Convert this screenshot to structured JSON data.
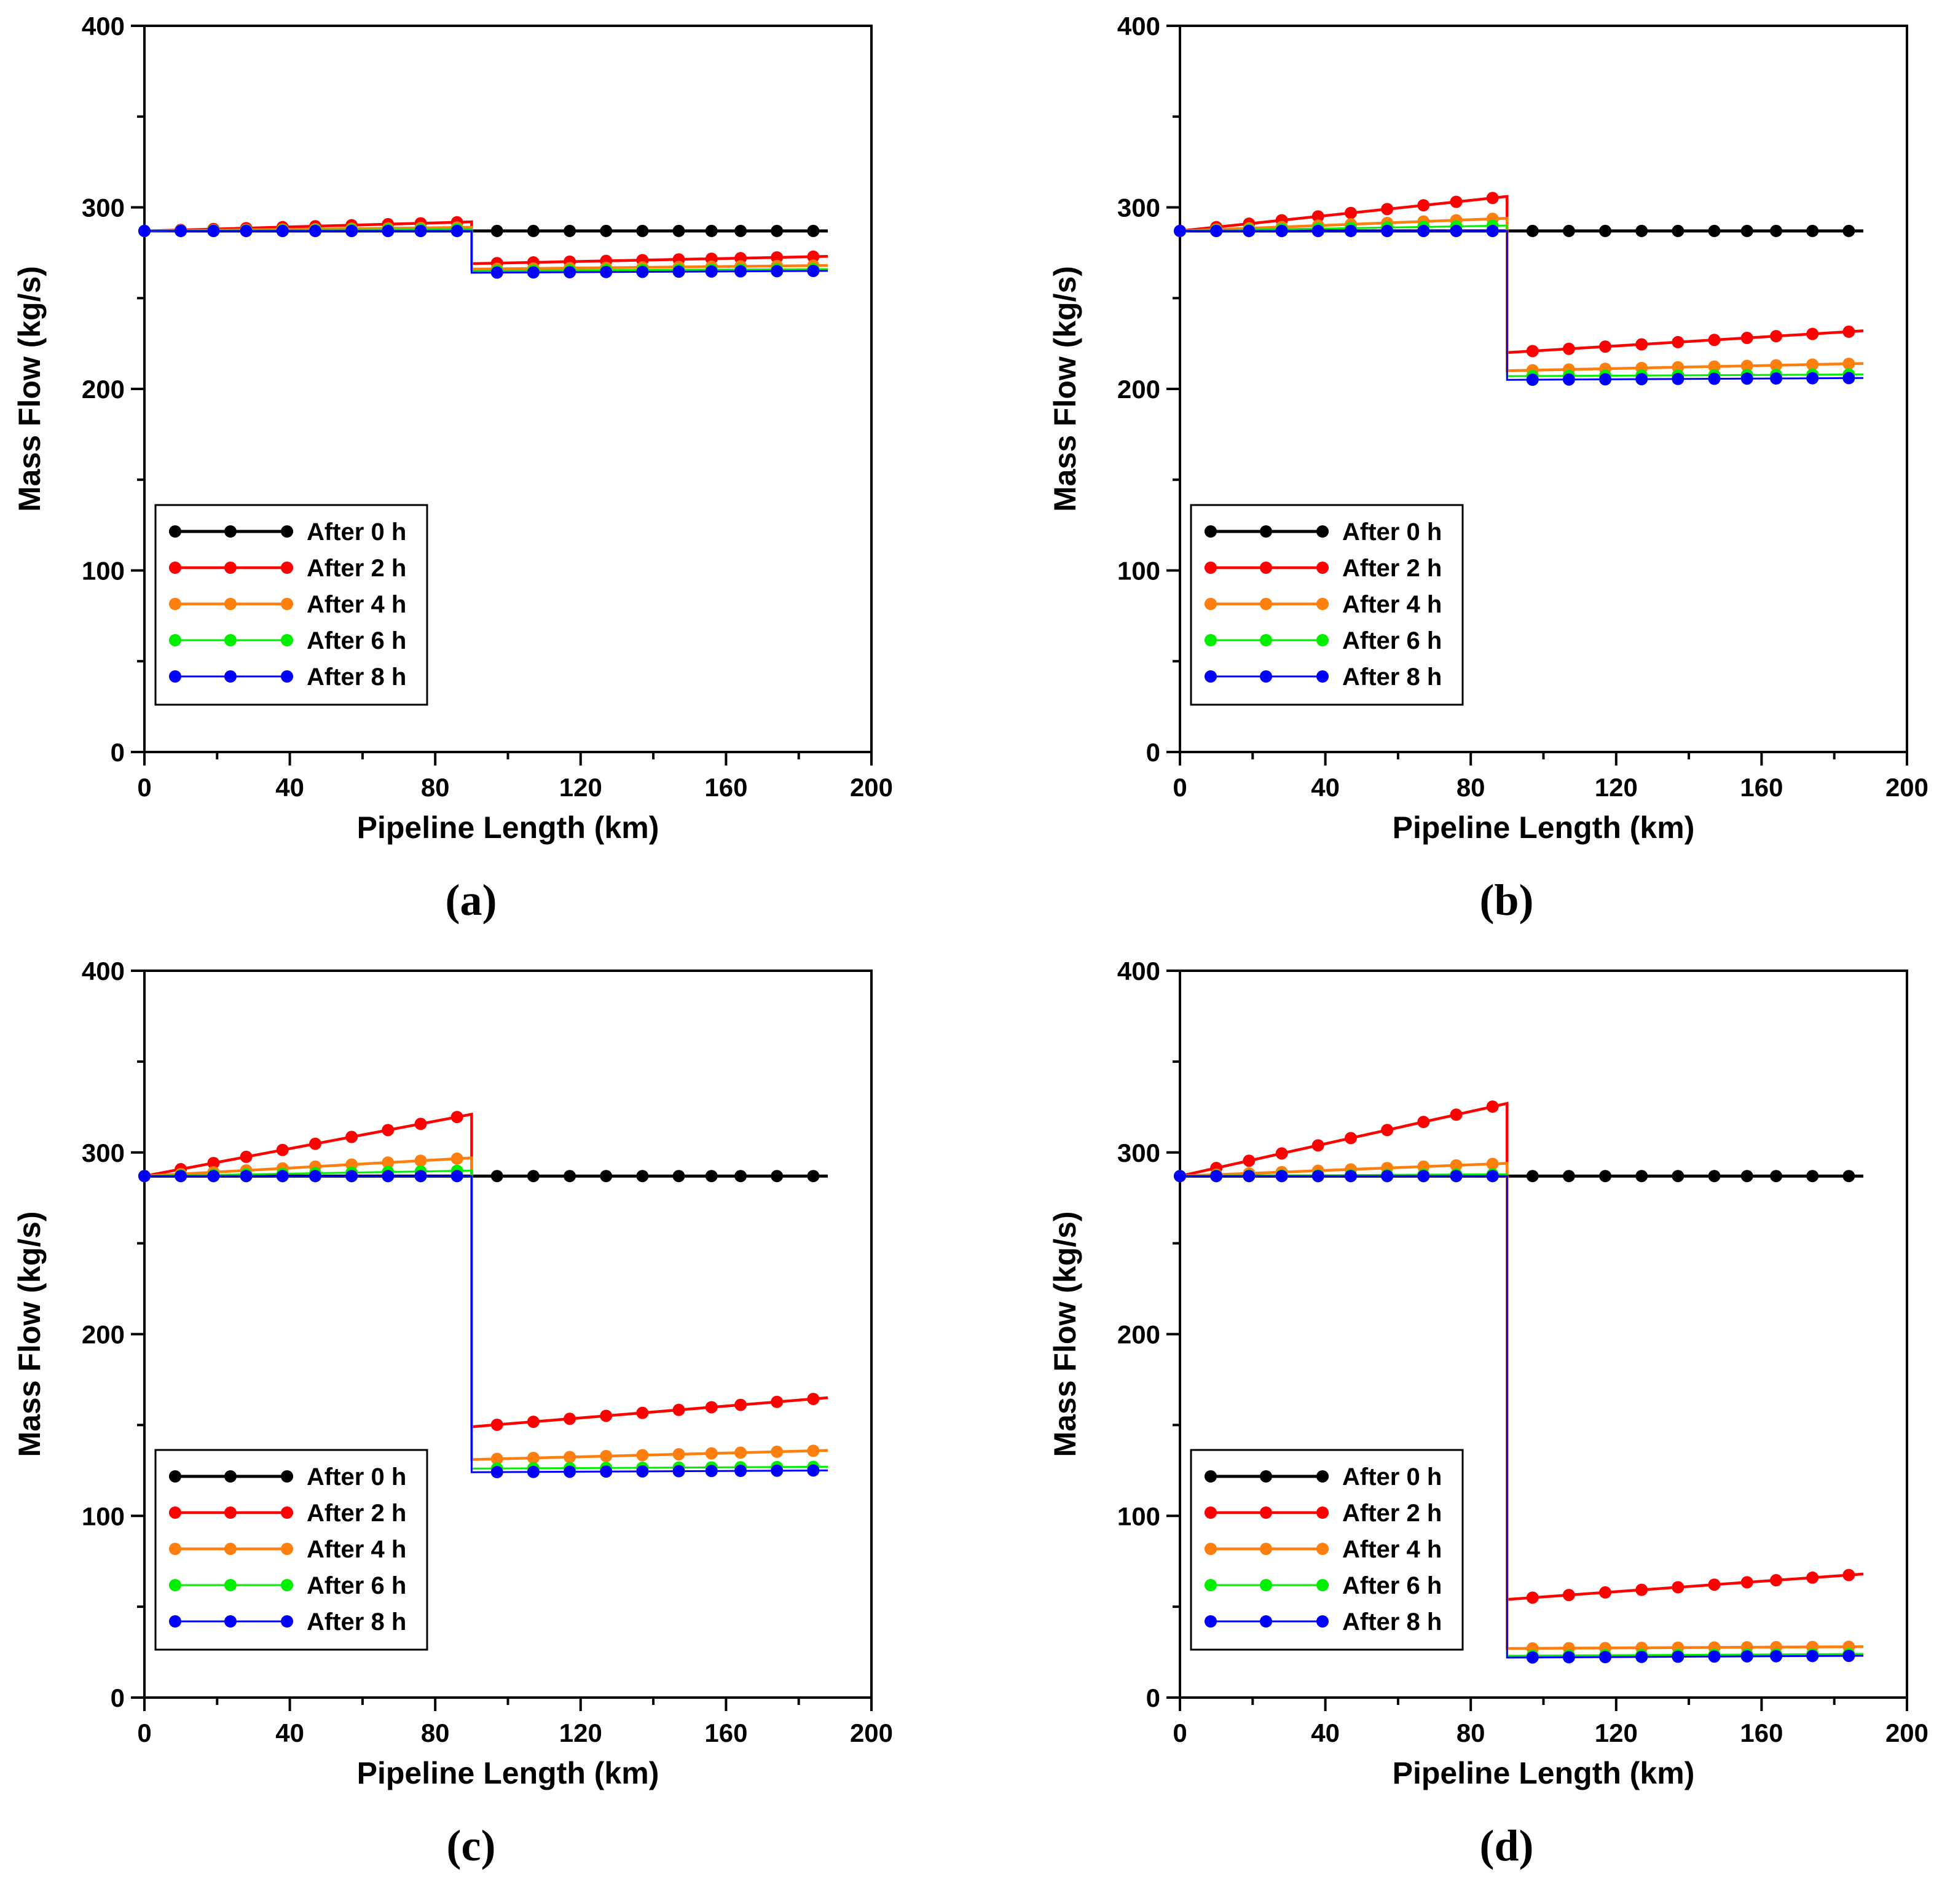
{
  "legend_entries": [
    "After 0 h",
    "After 2 h",
    "After 4 h",
    "After 6 h",
    "After 8 h"
  ],
  "series_colors": [
    "#000000",
    "#ff0000",
    "#ff7f0e",
    "#00ee00",
    "#0000ff"
  ],
  "chart_data": [
    {
      "type": "line",
      "panel_label": "(a)",
      "xlabel": "Pipeline Length (km)",
      "ylabel": "Mass Flow (kg/s)",
      "xlim": [
        0,
        200
      ],
      "ylim": [
        0,
        400
      ],
      "xticks": [
        0,
        40,
        80,
        120,
        160,
        200
      ],
      "yticks": [
        0,
        100,
        200,
        300,
        400
      ],
      "grid": false,
      "legend_position": "bottom-left",
      "jump_x": 90,
      "x_end": 188,
      "marker_x_before": [
        0,
        10,
        19,
        28,
        38,
        47,
        57,
        67,
        76,
        86
      ],
      "marker_x_after": [
        97,
        107,
        117,
        127,
        137,
        147,
        156,
        164,
        174,
        184
      ],
      "series": [
        {
          "name": "After 0 h",
          "y_start": 287,
          "y_peak": 287,
          "y_after_start": 287,
          "y_after_end": 287
        },
        {
          "name": "After 2 h",
          "y_start": 287,
          "y_peak": 292,
          "y_after_start": 269,
          "y_after_end": 273
        },
        {
          "name": "After 4 h",
          "y_start": 287,
          "y_peak": 289,
          "y_after_start": 266,
          "y_after_end": 268
        },
        {
          "name": "After 6 h",
          "y_start": 287,
          "y_peak": 288,
          "y_after_start": 265,
          "y_after_end": 266
        },
        {
          "name": "After 8 h",
          "y_start": 287,
          "y_peak": 287,
          "y_after_start": 264,
          "y_after_end": 265
        }
      ]
    },
    {
      "type": "line",
      "panel_label": "(b)",
      "xlabel": "Pipeline Length (km)",
      "ylabel": "Mass Flow (kg/s)",
      "xlim": [
        0,
        200
      ],
      "ylim": [
        0,
        400
      ],
      "xticks": [
        0,
        40,
        80,
        120,
        160,
        200
      ],
      "yticks": [
        0,
        100,
        200,
        300,
        400
      ],
      "grid": false,
      "legend_position": "bottom-left",
      "jump_x": 90,
      "x_end": 188,
      "marker_x_before": [
        0,
        10,
        19,
        28,
        38,
        47,
        57,
        67,
        76,
        86
      ],
      "marker_x_after": [
        97,
        107,
        117,
        127,
        137,
        147,
        156,
        164,
        174,
        184
      ],
      "series": [
        {
          "name": "After 0 h",
          "y_start": 287,
          "y_peak": 287,
          "y_after_start": 287,
          "y_after_end": 287
        },
        {
          "name": "After 2 h",
          "y_start": 287,
          "y_peak": 306,
          "y_after_start": 220,
          "y_after_end": 232
        },
        {
          "name": "After 4 h",
          "y_start": 287,
          "y_peak": 294,
          "y_after_start": 210,
          "y_after_end": 214
        },
        {
          "name": "After 6 h",
          "y_start": 287,
          "y_peak": 290,
          "y_after_start": 207,
          "y_after_end": 208
        },
        {
          "name": "After 8 h",
          "y_start": 287,
          "y_peak": 287,
          "y_after_start": 205,
          "y_after_end": 206
        }
      ]
    },
    {
      "type": "line",
      "panel_label": "(c)",
      "xlabel": "Pipeline Length (km)",
      "ylabel": "Mass Flow (kg/s)",
      "xlim": [
        0,
        200
      ],
      "ylim": [
        0,
        400
      ],
      "xticks": [
        0,
        40,
        80,
        120,
        160,
        200
      ],
      "yticks": [
        0,
        100,
        200,
        300,
        400
      ],
      "grid": false,
      "legend_position": "bottom-left",
      "jump_x": 90,
      "x_end": 188,
      "marker_x_before": [
        0,
        10,
        19,
        28,
        38,
        47,
        57,
        67,
        76,
        86
      ],
      "marker_x_after": [
        97,
        107,
        117,
        127,
        137,
        147,
        156,
        164,
        174,
        184
      ],
      "series": [
        {
          "name": "After 0 h",
          "y_start": 287,
          "y_peak": 287,
          "y_after_start": 287,
          "y_after_end": 287
        },
        {
          "name": "After 2 h",
          "y_start": 287,
          "y_peak": 321,
          "y_after_start": 149,
          "y_after_end": 165
        },
        {
          "name": "After 4 h",
          "y_start": 287,
          "y_peak": 297,
          "y_after_start": 131,
          "y_after_end": 136
        },
        {
          "name": "After 6 h",
          "y_start": 287,
          "y_peak": 290,
          "y_after_start": 126,
          "y_after_end": 127
        },
        {
          "name": "After 8 h",
          "y_start": 287,
          "y_peak": 287,
          "y_after_start": 124,
          "y_after_end": 125
        }
      ]
    },
    {
      "type": "line",
      "panel_label": "(d)",
      "xlabel": "Pipeline Length (km)",
      "ylabel": "Mass Flow (kg/s)",
      "xlim": [
        0,
        200
      ],
      "ylim": [
        0,
        400
      ],
      "xticks": [
        0,
        40,
        80,
        120,
        160,
        200
      ],
      "yticks": [
        0,
        100,
        200,
        300,
        400
      ],
      "grid": false,
      "legend_position": "bottom-left",
      "jump_x": 90,
      "x_end": 188,
      "marker_x_before": [
        0,
        10,
        19,
        28,
        38,
        47,
        57,
        67,
        76,
        86
      ],
      "marker_x_after": [
        97,
        107,
        117,
        127,
        137,
        147,
        156,
        164,
        174,
        184
      ],
      "series": [
        {
          "name": "After 0 h",
          "y_start": 287,
          "y_peak": 287,
          "y_after_start": 287,
          "y_after_end": 287
        },
        {
          "name": "After 2 h",
          "y_start": 287,
          "y_peak": 327,
          "y_after_start": 54,
          "y_after_end": 68
        },
        {
          "name": "After 4 h",
          "y_start": 287,
          "y_peak": 294,
          "y_after_start": 27,
          "y_after_end": 28
        },
        {
          "name": "After 6 h",
          "y_start": 287,
          "y_peak": 288,
          "y_after_start": 23,
          "y_after_end": 24
        },
        {
          "name": "After 8 h",
          "y_start": 287,
          "y_peak": 287,
          "y_after_start": 22,
          "y_after_end": 23
        }
      ]
    }
  ]
}
